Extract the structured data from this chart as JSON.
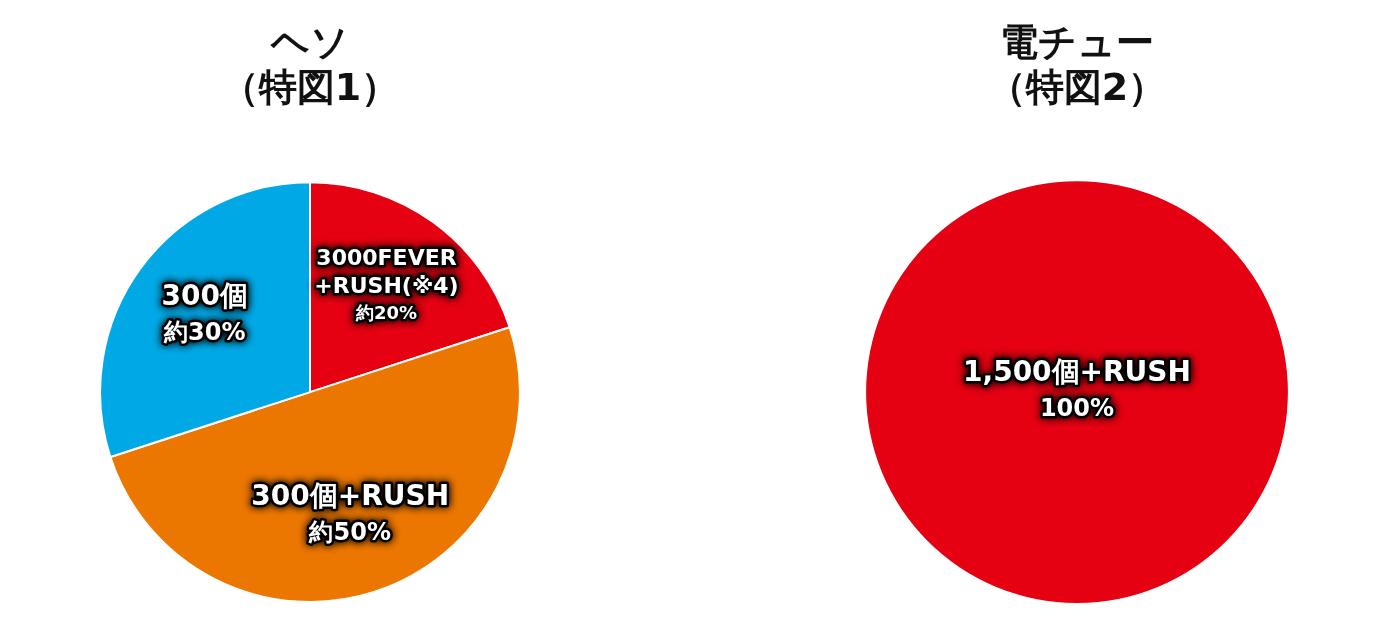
{
  "chart_data": [
    {
      "type": "pie",
      "title": "ヘソ",
      "subtitle": "（特図1）",
      "categories": [
        "3000FEVER+RUSH(※4)",
        "300個+RUSH",
        "300個"
      ],
      "values": [
        20,
        50,
        30
      ],
      "colors": [
        "#e50012",
        "#ec7700",
        "#00a9e6"
      ],
      "value_labels": [
        "約20%",
        "約50%",
        "約30%"
      ],
      "legend": false
    },
    {
      "type": "pie",
      "title": "電チュー",
      "subtitle": "（特図2）",
      "categories": [
        "1,500個+RUSH"
      ],
      "values": [
        100
      ],
      "colors": [
        "#e50012"
      ],
      "value_labels": [
        "100%"
      ],
      "legend": false
    }
  ]
}
